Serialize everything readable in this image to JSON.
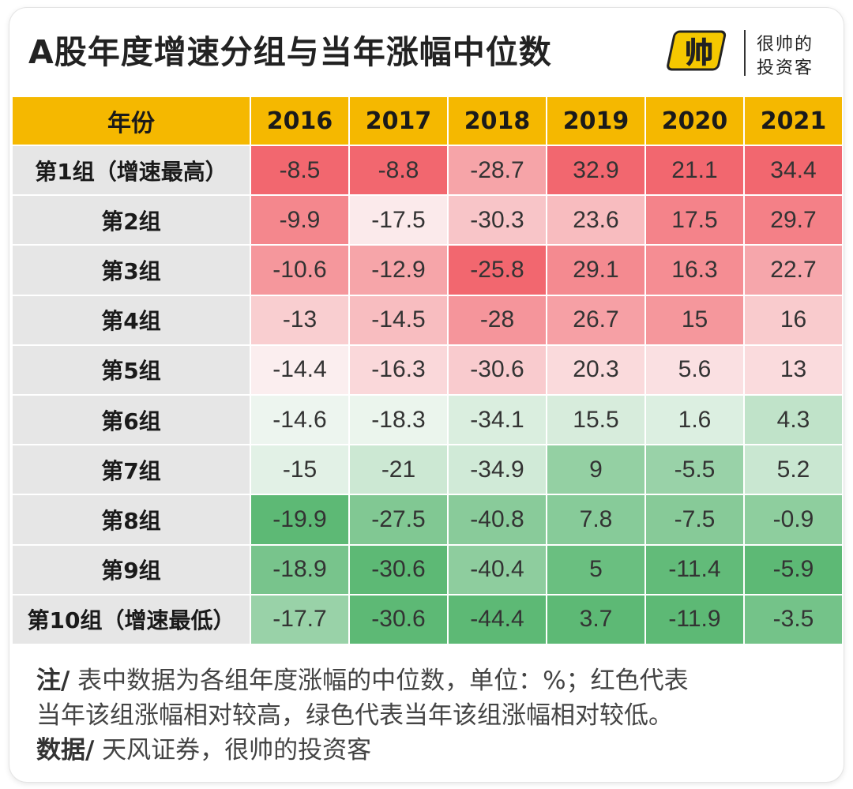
{
  "title": "A股年度增速分组与当年涨幅中位数",
  "logo": {
    "mark": "帅",
    "line1": "很帅的",
    "line2": "投资客"
  },
  "colors": {
    "header_bg": "#F5B800",
    "row_header_bg": "#e6e6e6",
    "high_red": "#F2676F",
    "low_green": "#5DB975"
  },
  "table": {
    "corner_label": "年份"
  },
  "chart_data": {
    "type": "heatmap",
    "title": "A股年度增速分组与当年涨幅中位数",
    "columns": [
      "2016",
      "2017",
      "2018",
      "2019",
      "2020",
      "2021"
    ],
    "rows": [
      {
        "label": "第1组（增速最高）",
        "values": [
          "-8.5",
          "-8.8",
          "-28.7",
          "32.9",
          "21.1",
          "34.4"
        ]
      },
      {
        "label": "第2组",
        "values": [
          "-9.9",
          "-17.5",
          "-30.3",
          "23.6",
          "17.5",
          "29.7"
        ]
      },
      {
        "label": "第3组",
        "values": [
          "-10.6",
          "-12.9",
          "-25.8",
          "29.1",
          "16.3",
          "22.7"
        ]
      },
      {
        "label": "第4组",
        "values": [
          "-13",
          "-14.5",
          "-28",
          "26.7",
          "15",
          "16"
        ]
      },
      {
        "label": "第5组",
        "values": [
          "-14.4",
          "-16.3",
          "-30.6",
          "20.3",
          "5.6",
          "13"
        ]
      },
      {
        "label": "第6组",
        "values": [
          "-14.6",
          "-18.3",
          "-34.1",
          "15.5",
          "1.6",
          "4.3"
        ]
      },
      {
        "label": "第7组",
        "values": [
          "-15",
          "-21",
          "-34.9",
          "9",
          "-5.5",
          "5.2"
        ]
      },
      {
        "label": "第8组",
        "values": [
          "-19.9",
          "-27.5",
          "-40.8",
          "7.8",
          "-7.5",
          "-0.9"
        ]
      },
      {
        "label": "第9组",
        "values": [
          "-18.9",
          "-30.6",
          "-40.4",
          "5",
          "-11.4",
          "-5.9"
        ]
      },
      {
        "label": "第10组（增速最低）",
        "values": [
          "-17.7",
          "-30.6",
          "-44.4",
          "3.7",
          "-11.9",
          "-3.5"
        ]
      }
    ],
    "color_scale": "per-column: red = relatively high, green = relatively low"
  },
  "notes": {
    "note_label": "注/",
    "note_text_1": " 表中数据为各组年度涨幅的中位数，单位：%；红色代表",
    "note_text_2": "当年该组涨幅相对较高，绿色代表当年该组涨幅相对较低。",
    "source_label": "数据/",
    "source_text": " 天风证券，很帅的投资客"
  }
}
